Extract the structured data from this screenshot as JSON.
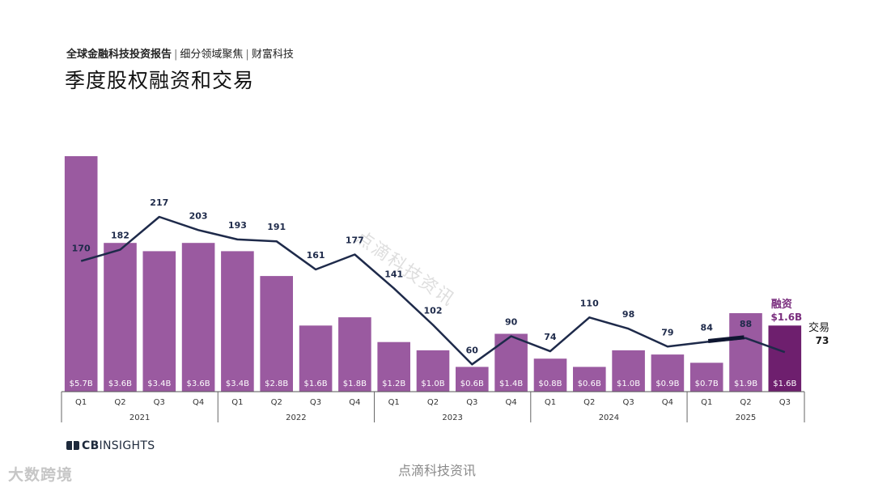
{
  "header": {
    "report_name": "全球金融科技投资报告",
    "tag1": "细分领域聚焦",
    "tag2": "财富科技",
    "separator": "|"
  },
  "page_title": "季度股权融资和交易",
  "brand": {
    "prefix": "CB",
    "suffix": "INSIGHTS"
  },
  "footer_source": "点滴科技资讯",
  "watermark": "点滴科技资讯",
  "corner_logo": "大数跨境",
  "chart_data": {
    "type": "bar",
    "title": "",
    "categories": [
      "Q1",
      "Q2",
      "Q3",
      "Q4",
      "Q1",
      "Q2",
      "Q3",
      "Q4",
      "Q1",
      "Q2",
      "Q3",
      "Q4",
      "Q1",
      "Q2",
      "Q3",
      "Q4",
      "Q1",
      "Q2",
      "Q3"
    ],
    "years": [
      {
        "label": "2021",
        "count": 4
      },
      {
        "label": "2022",
        "count": 4
      },
      {
        "label": "2023",
        "count": 4
      },
      {
        "label": "2024",
        "count": 4
      },
      {
        "label": "2025",
        "count": 3
      }
    ],
    "series": [
      {
        "type": "bar",
        "unit": "$B",
        "values": [
          5.7,
          3.6,
          3.4,
          3.6,
          3.4,
          2.8,
          1.6,
          1.8,
          1.2,
          1.0,
          0.6,
          1.4,
          0.8,
          0.6,
          1.0,
          0.9,
          0.7,
          1.9,
          1.6
        ],
        "labels": [
          "$5.7B",
          "$3.6B",
          "$3.4B",
          "$3.6B",
          "$3.4B",
          "$2.8B",
          "$1.6B",
          "$1.8B",
          "$1.2B",
          "$1.0B",
          "$0.6B",
          "$1.4B",
          "$0.8B",
          "$0.6B",
          "$1.0B",
          "$0.9B",
          "$0.7B",
          "$1.9B",
          "$1.6B"
        ]
      },
      {
        "type": "line",
        "values": [
          170,
          182,
          217,
          203,
          193,
          191,
          161,
          177,
          141,
          102,
          60,
          90,
          74,
          110,
          98,
          79,
          84,
          88,
          73
        ]
      }
    ],
    "callouts": {
      "funding_label": "融资",
      "funding_value": "$1.6B",
      "deals_label": "交易",
      "deals_value": "73"
    },
    "colors": {
      "bar": "#9a5aa0",
      "bar_latest": "#6e1f6e",
      "line": "#1e2a4a",
      "funding_callout": "#7a2e7e"
    },
    "bar_ylim": [
      0,
      6.0
    ],
    "line_ylim": [
      0,
      350
    ],
    "grid": false,
    "legend": "none"
  }
}
